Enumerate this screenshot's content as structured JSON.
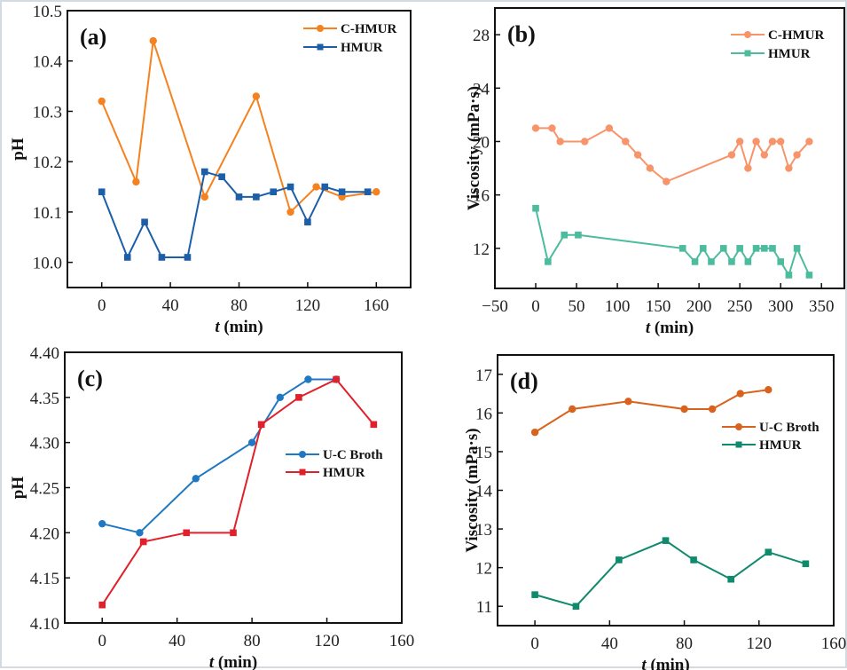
{
  "chart_data": [
    {
      "type": "line",
      "panel_label": "(a)",
      "xlabel_italic": "t",
      "xlabel_rest": " (min)",
      "ylabel": "pH",
      "xlim": [
        -20,
        180
      ],
      "ylim": [
        9.95,
        10.5
      ],
      "xticks": [
        0,
        40,
        80,
        120,
        160
      ],
      "xtick_labels": [
        "0",
        "40",
        "80",
        "120",
        "160"
      ],
      "yticks": [
        10.0,
        10.1,
        10.2,
        10.3,
        10.4,
        10.5
      ],
      "ytick_labels": [
        "10.0",
        "10.1",
        "10.2",
        "10.3",
        "10.4",
        "10.5"
      ],
      "legend_position": "top-right",
      "grid": false,
      "series": [
        {
          "name": "C-HMUR",
          "marker": "circle",
          "color": "#f5821f",
          "x": [
            0,
            20,
            30,
            60,
            90,
            110,
            125,
            140,
            160
          ],
          "y": [
            10.32,
            10.16,
            10.44,
            10.13,
            10.33,
            10.1,
            10.15,
            10.13,
            10.14
          ]
        },
        {
          "name": "HMUR",
          "marker": "square",
          "color": "#1c5fa8",
          "x": [
            0,
            15,
            25,
            35,
            50,
            60,
            70,
            80,
            90,
            100,
            110,
            120,
            130,
            140,
            155
          ],
          "y": [
            10.14,
            10.01,
            10.08,
            10.01,
            10.01,
            10.18,
            10.17,
            10.13,
            10.13,
            10.14,
            10.15,
            10.08,
            10.15,
            10.14,
            10.14
          ]
        }
      ]
    },
    {
      "type": "line",
      "panel_label": "(b)",
      "xlabel_italic": "t",
      "xlabel_rest": " (min)",
      "ylabel": "Viscosity (mPa·s)",
      "xlim": [
        -50,
        378
      ],
      "ylim": [
        9,
        30
      ],
      "xticks": [
        -50,
        0,
        50,
        100,
        150,
        200,
        250,
        300,
        350
      ],
      "xtick_labels": [
        "−50",
        "0",
        "50",
        "100",
        "150",
        "200",
        "250",
        "300",
        "350"
      ],
      "yticks": [
        12,
        16,
        20,
        24,
        28
      ],
      "ytick_labels": [
        "12",
        "16",
        "20",
        "24",
        "28"
      ],
      "legend_position": "top-right",
      "grid": false,
      "series": [
        {
          "name": "C-HMUR",
          "marker": "circle",
          "color": "#f7946a",
          "x": [
            0,
            20,
            30,
            60,
            90,
            110,
            125,
            140,
            160,
            240,
            250,
            260,
            270,
            280,
            290,
            300,
            310,
            320,
            335
          ],
          "y": [
            21,
            21,
            20,
            20,
            21,
            20,
            19,
            18,
            17,
            19,
            20,
            18,
            20,
            19,
            20,
            20,
            18,
            19,
            20
          ]
        },
        {
          "name": "HMUR",
          "marker": "square",
          "color": "#4dbc9e",
          "x": [
            0,
            15,
            35,
            52,
            180,
            195,
            205,
            215,
            230,
            240,
            250,
            260,
            270,
            280,
            290,
            300,
            310,
            320,
            335
          ],
          "y": [
            15,
            11,
            13,
            13,
            12,
            11,
            12,
            11,
            12,
            11,
            12,
            11,
            12,
            12,
            12,
            11,
            10,
            12,
            10
          ]
        }
      ]
    },
    {
      "type": "line",
      "panel_label": "(c)",
      "xlabel_italic": "t",
      "xlabel_rest": " (min)",
      "ylabel": "pH",
      "xlim": [
        -20,
        160
      ],
      "ylim": [
        4.1,
        4.4
      ],
      "xticks": [
        0,
        40,
        80,
        120,
        160
      ],
      "xtick_labels": [
        "0",
        "40",
        "80",
        "120",
        "160"
      ],
      "yticks": [
        4.1,
        4.15,
        4.2,
        4.25,
        4.3,
        4.35,
        4.4
      ],
      "ytick_labels": [
        "4.10",
        "4.15",
        "4.20",
        "4.25",
        "4.30",
        "4.35",
        "4.40"
      ],
      "legend_position": "center-right",
      "grid": false,
      "series": [
        {
          "name": "U-C Broth",
          "marker": "circle",
          "color": "#1f78c1",
          "x": [
            0,
            20,
            50,
            80,
            95,
            110,
            125
          ],
          "y": [
            4.21,
            4.2,
            4.26,
            4.3,
            4.35,
            4.37,
            4.37
          ]
        },
        {
          "name": "HMUR",
          "marker": "square",
          "color": "#e0202a",
          "x": [
            0,
            22,
            45,
            70,
            85,
            105,
            125,
            145
          ],
          "y": [
            4.12,
            4.19,
            4.2,
            4.2,
            4.32,
            4.35,
            4.37,
            4.32
          ]
        }
      ]
    },
    {
      "type": "line",
      "panel_label": "(d)",
      "xlabel_italic": "t",
      "xlabel_rest": " (min)",
      "ylabel": "Viscosity (mPa·s)",
      "xlim": [
        -20,
        160
      ],
      "ylim": [
        10.5,
        17.5
      ],
      "xticks": [
        0,
        40,
        80,
        120,
        160
      ],
      "xtick_labels": [
        "0",
        "40",
        "80",
        "120",
        "160"
      ],
      "yticks": [
        11,
        12,
        13,
        14,
        15,
        16,
        17
      ],
      "ytick_labels": [
        "11",
        "12",
        "13",
        "14",
        "15",
        "16",
        "17"
      ],
      "legend_position": "upper-right",
      "grid": false,
      "series": [
        {
          "name": "U-C Broth",
          "marker": "circle",
          "color": "#d9621c",
          "x": [
            0,
            20,
            50,
            80,
            95,
            110,
            125
          ],
          "y": [
            15.5,
            16.1,
            16.3,
            16.1,
            16.1,
            16.5,
            16.6
          ]
        },
        {
          "name": "HMUR",
          "marker": "square",
          "color": "#0f8a6c",
          "x": [
            0,
            22,
            45,
            70,
            85,
            105,
            125,
            145
          ],
          "y": [
            11.3,
            11.0,
            12.2,
            12.7,
            12.2,
            11.7,
            12.4,
            12.1
          ]
        }
      ]
    }
  ]
}
